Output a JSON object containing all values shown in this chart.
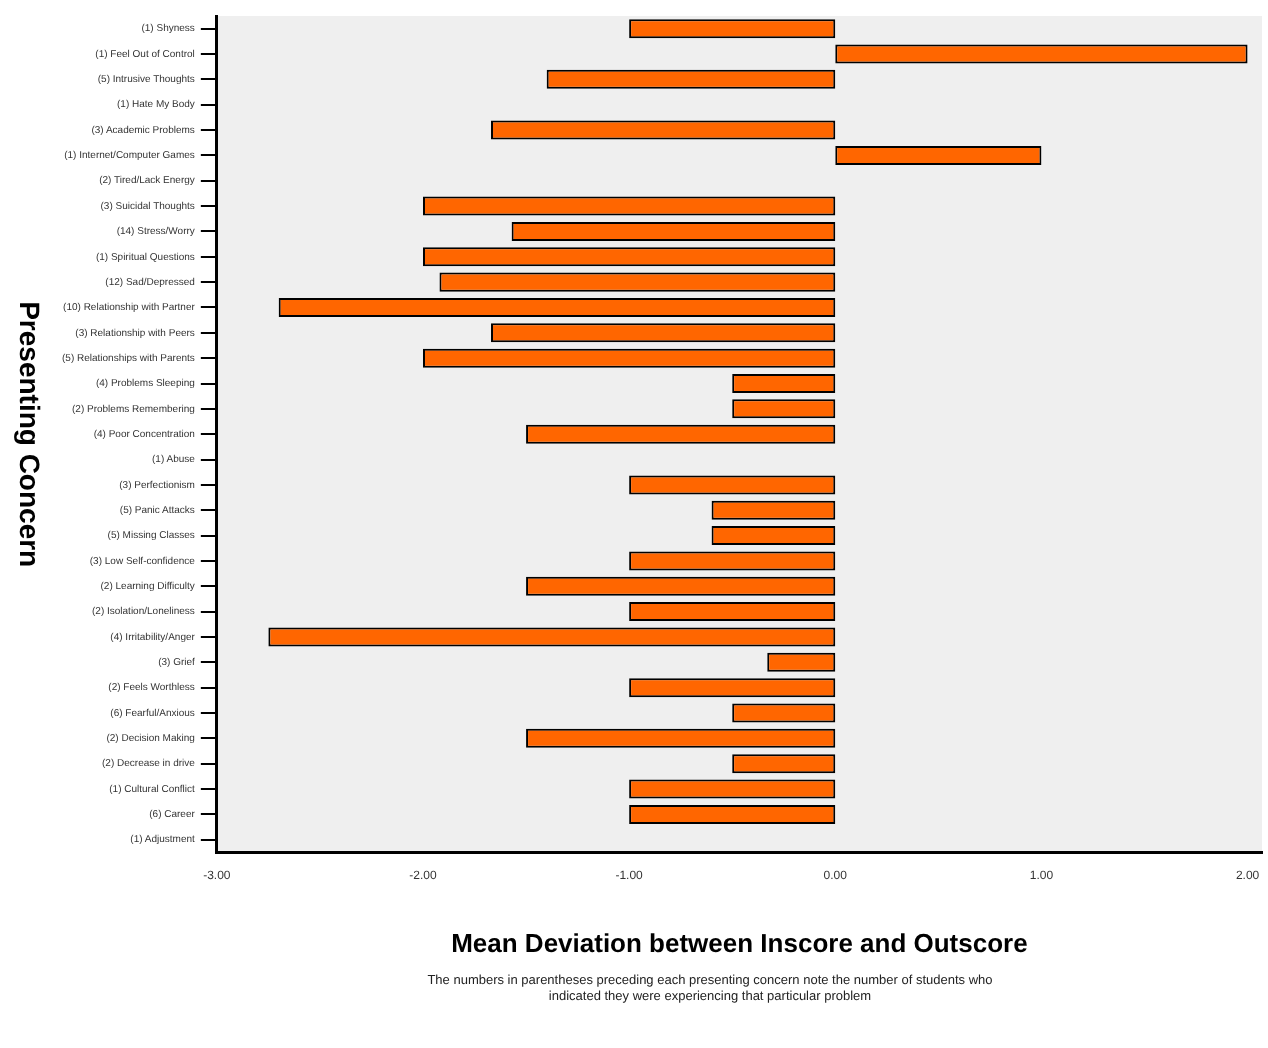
{
  "chart_data": {
    "type": "bar",
    "orientation": "horizontal",
    "xlabel": "Mean Deviation between Inscore and Outscore",
    "ylabel": "Presenting Concern",
    "annotations": [
      "The numbers in parentheses preceding each presenting concern note the number of students who indicated they were experiencing that particular problem"
    ],
    "categories": [
      "(1) Shyness",
      "(1) Feel Out of Control",
      "(5) Intrusive Thoughts",
      "(1) Hate My Body",
      "(3) Academic Problems",
      "(1) Internet/Computer Games",
      "(2) Tired/Lack Energy",
      "(3) Suicidal Thoughts",
      "(14) Stress/Worry",
      "(1) Spiritual Questions",
      "(12) Sad/Depressed",
      "(10) Relationship with Partner",
      "(3) Relationship with Peers",
      "(5) Relationships with Parents",
      "(4) Problems Sleeping",
      "(2) Problems Remembering",
      "(4) Poor Concentration",
      "(1) Abuse",
      "(3) Perfectionism",
      "(5) Panic Attacks",
      "(5) Missing Classes",
      "(3) Low Self-confidence",
      "(2) Learning Difficulty",
      "(2) Isolation/Loneliness",
      "(4) Irritability/Anger",
      "(3) Grief",
      "(2) Feels Worthless",
      "(6) Fearful/Anxious",
      "(2) Decision Making",
      "(2) Decrease in drive",
      "(1) Cultural Conflict",
      "(6) Career",
      "(1) Adjustment"
    ],
    "values": [
      -1.0,
      2.0,
      -1.4,
      0,
      -1.67,
      1.0,
      0,
      -2.0,
      -1.57,
      -2.0,
      -1.92,
      -2.7,
      -1.67,
      -2.0,
      -0.5,
      -0.5,
      -1.5,
      0,
      -1.0,
      -0.6,
      -0.6,
      -1.0,
      -1.5,
      -1.0,
      -2.75,
      -0.33,
      -1.0,
      -0.5,
      -1.5,
      -0.5,
      -1.0,
      -1.0,
      0
    ],
    "color": "#ff6600",
    "xlim": [
      -3,
      2.07
    ],
    "xticks": [
      {
        "value": -3,
        "label": "-3.00"
      },
      {
        "value": -2,
        "label": "-2.00"
      },
      {
        "value": -1,
        "label": "-1.00"
      },
      {
        "value": 0,
        "label": "0.00"
      },
      {
        "value": 1,
        "label": "1.00"
      },
      {
        "value": 2,
        "label": "2.00"
      }
    ],
    "grid": false,
    "legend": false
  }
}
